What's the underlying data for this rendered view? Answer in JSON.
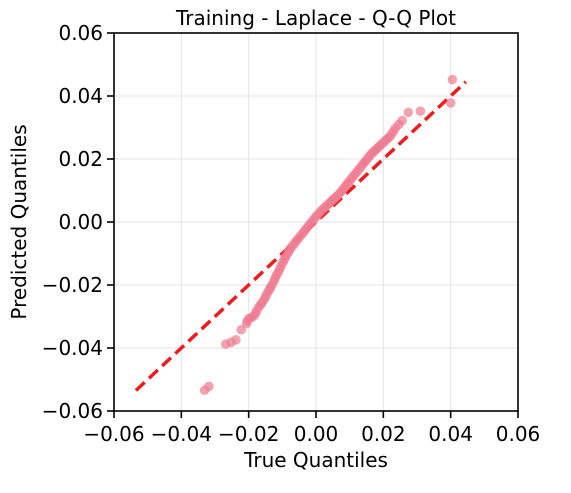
{
  "chart_data": {
    "type": "scatter",
    "title": "Training - Laplace - Q-Q Plot",
    "xlabel": "True Quantiles",
    "ylabel": "Predicted Quantiles",
    "xlim": [
      -0.06,
      0.06
    ],
    "ylim": [
      -0.06,
      0.06
    ],
    "xticks": [
      -0.06,
      -0.04,
      -0.02,
      0.0,
      0.02,
      0.04,
      0.06
    ],
    "yticks": [
      -0.06,
      -0.04,
      -0.02,
      0.0,
      0.02,
      0.04,
      0.06
    ],
    "xtick_labels": [
      "−0.06",
      "−0.04",
      "−0.02",
      "0.00",
      "0.02",
      "0.04",
      "0.06"
    ],
    "ytick_labels": [
      "−0.06",
      "−0.04",
      "−0.02",
      "0.00",
      "0.02",
      "0.04",
      "0.06"
    ],
    "grid": true,
    "point_color": "#f07a90",
    "reference_line_color": "#ee1c1c",
    "reference_line": {
      "x": [
        -0.0535,
        0.0445
      ],
      "y": [
        -0.0535,
        0.0445
      ],
      "style": "dashed"
    },
    "x": [
      -0.0331,
      -0.0318,
      -0.0268,
      -0.0252,
      -0.0238,
      -0.0222,
      -0.0206,
      -0.0204,
      -0.0199,
      -0.0192,
      -0.0184,
      -0.018,
      -0.0176,
      -0.017,
      -0.0164,
      -0.016,
      -0.0154,
      -0.015,
      -0.0146,
      -0.014,
      -0.0136,
      -0.0132,
      -0.0126,
      -0.0122,
      -0.0118,
      -0.0112,
      -0.0108,
      -0.0104,
      -0.0098,
      -0.0094,
      -0.009,
      -0.0084,
      -0.008,
      -0.0076,
      -0.007,
      -0.0064,
      -0.0058,
      -0.0052,
      -0.0046,
      -0.004,
      -0.0034,
      -0.0028,
      -0.0022,
      -0.0016,
      -0.001,
      -0.0004,
      0.0002,
      0.0008,
      0.0014,
      0.002,
      0.0026,
      0.0032,
      0.0038,
      0.0044,
      0.005,
      0.0056,
      0.0062,
      0.0068,
      0.0074,
      0.008,
      0.0086,
      0.0092,
      0.0098,
      0.0104,
      0.011,
      0.0116,
      0.0122,
      0.0128,
      0.0134,
      0.014,
      0.0146,
      0.0152,
      0.0158,
      0.0164,
      0.017,
      0.0176,
      0.0182,
      0.0188,
      0.0194,
      0.02,
      0.0206,
      0.0212,
      0.0218,
      0.0224,
      0.023,
      0.0236,
      0.0246,
      0.0256,
      0.0274,
      0.031,
      0.04,
      0.0405
    ],
    "y": [
      -0.0534,
      -0.0522,
      -0.0388,
      -0.0382,
      -0.0374,
      -0.0342,
      -0.0322,
      -0.0314,
      -0.0306,
      -0.0304,
      -0.0298,
      -0.029,
      -0.0282,
      -0.027,
      -0.0262,
      -0.0256,
      -0.0246,
      -0.0238,
      -0.0228,
      -0.0218,
      -0.021,
      -0.0202,
      -0.019,
      -0.018,
      -0.017,
      -0.016,
      -0.015,
      -0.014,
      -0.0128,
      -0.0118,
      -0.011,
      -0.01,
      -0.0092,
      -0.0084,
      -0.0076,
      -0.0068,
      -0.006,
      -0.0052,
      -0.0044,
      -0.0036,
      -0.0028,
      -0.002,
      -0.0012,
      -0.0004,
      0.0004,
      0.0012,
      0.002,
      0.0026,
      0.0034,
      0.004,
      0.0046,
      0.0052,
      0.0058,
      0.0064,
      0.007,
      0.0076,
      0.0082,
      0.0088,
      0.0096,
      0.0104,
      0.0112,
      0.012,
      0.0128,
      0.0136,
      0.0144,
      0.0152,
      0.016,
      0.0168,
      0.0176,
      0.0184,
      0.0192,
      0.02,
      0.0208,
      0.0216,
      0.0222,
      0.0228,
      0.0234,
      0.024,
      0.0246,
      0.0252,
      0.0258,
      0.0264,
      0.027,
      0.0278,
      0.0288,
      0.0298,
      0.031,
      0.0322,
      0.0348,
      0.0352,
      0.0378,
      0.0452
    ]
  }
}
